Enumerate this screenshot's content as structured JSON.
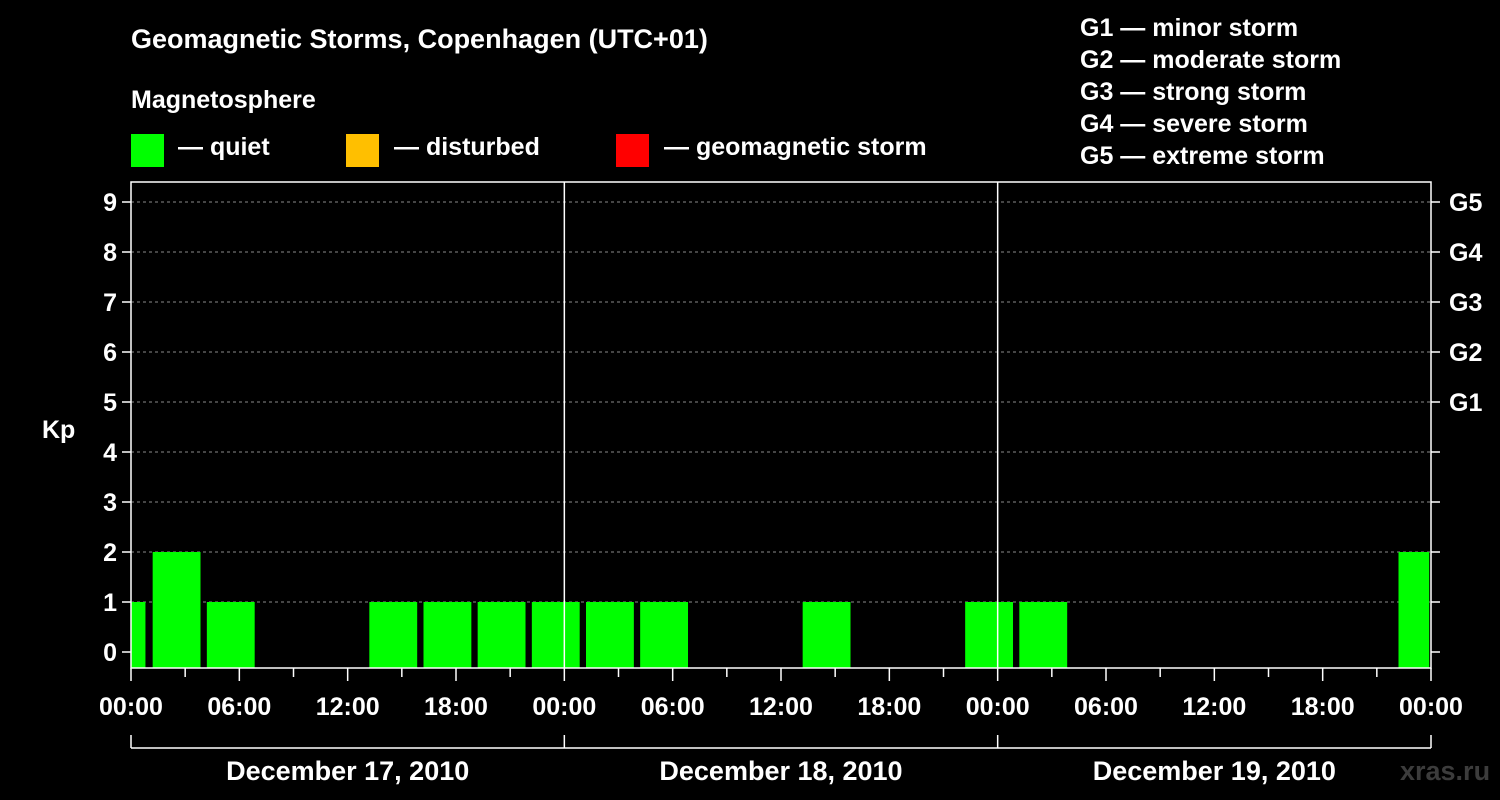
{
  "title": "Geomagnetic Storms, Copenhagen (UTC+01)",
  "legend": {
    "heading": "Magnetosphere",
    "items": [
      {
        "label": "— quiet",
        "color": "#00ff00"
      },
      {
        "label": "— disturbed",
        "color": "#ffbf00"
      },
      {
        "label": "— geomagnetic storm",
        "color": "#ff0000"
      }
    ]
  },
  "g_scale": [
    "G1 — minor storm",
    "G2 — moderate storm",
    "G3 — strong storm",
    "G4 — severe storm",
    "G5 — extreme storm"
  ],
  "watermark": "xras.ru",
  "chart_data": {
    "type": "bar",
    "title": "Geomagnetic Storms, Copenhagen (UTC+01)",
    "ylabel": "Kp",
    "xlabel": "",
    "ylim": [
      0,
      9
    ],
    "yticks": [
      "0",
      "1",
      "2",
      "3",
      "4",
      "5",
      "6",
      "7",
      "8",
      "9"
    ],
    "right_ticks": [
      {
        "kp": 5,
        "label": "G1"
      },
      {
        "kp": 6,
        "label": "G2"
      },
      {
        "kp": 7,
        "label": "G3"
      },
      {
        "kp": 8,
        "label": "G4"
      },
      {
        "kp": 9,
        "label": "G5"
      }
    ],
    "xlim_hours": [
      0,
      72
    ],
    "xtick_labels": [
      "00:00",
      "06:00",
      "12:00",
      "18:00",
      "00:00",
      "06:00",
      "12:00",
      "18:00",
      "00:00",
      "06:00",
      "12:00",
      "18:00",
      "00:00"
    ],
    "days": [
      "December 17, 2010",
      "December 18, 2010",
      "December 19, 2010"
    ],
    "bar_width_hours": 2.65,
    "series": [
      {
        "name": "quiet",
        "color": "#00ff00",
        "bars": [
          {
            "start": 0,
            "end": 0.8,
            "kp": 1
          },
          {
            "start": 1.2,
            "kp": 2
          },
          {
            "start": 4.2,
            "kp": 1
          },
          {
            "start": 13.2,
            "kp": 1
          },
          {
            "start": 16.2,
            "kp": 1
          },
          {
            "start": 19.2,
            "kp": 1
          },
          {
            "start": 22.2,
            "kp": 1
          },
          {
            "start": 25.2,
            "kp": 1
          },
          {
            "start": 28.2,
            "kp": 1
          },
          {
            "start": 37.2,
            "kp": 1
          },
          {
            "start": 46.2,
            "kp": 1
          },
          {
            "start": 49.2,
            "kp": 1
          },
          {
            "start": 70.2,
            "end": 71.9,
            "kp": 2
          }
        ]
      }
    ]
  }
}
